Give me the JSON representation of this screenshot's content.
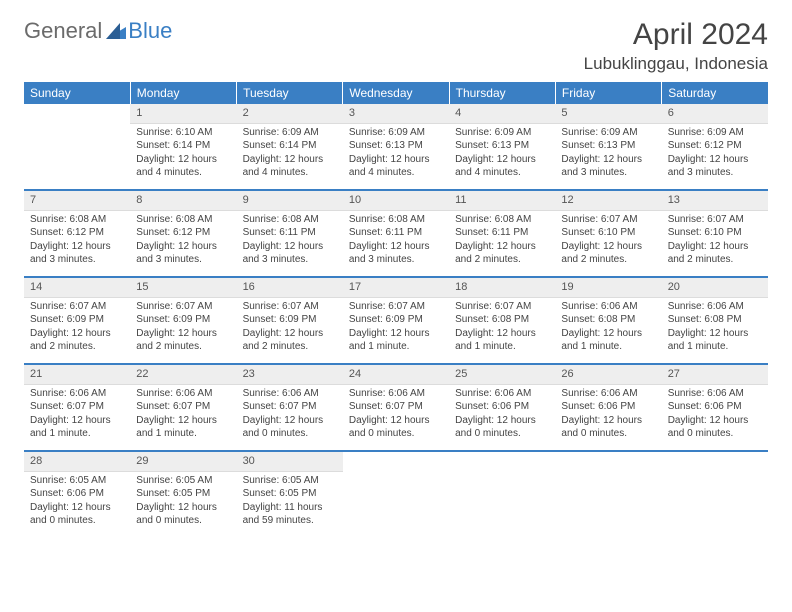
{
  "brand": {
    "part1": "General",
    "part2": "Blue"
  },
  "title": "April 2024",
  "location": "Lubuklinggau, Indonesia",
  "header_bg": "#3a7fc4",
  "weekdays": [
    "Sunday",
    "Monday",
    "Tuesday",
    "Wednesday",
    "Thursday",
    "Friday",
    "Saturday"
  ],
  "cell_bg_daynum": "#eeeeee",
  "text_color": "#444444",
  "days": [
    {
      "n": "",
      "sunrise": "",
      "sunset": "",
      "daylight": ""
    },
    {
      "n": "1",
      "sunrise": "Sunrise: 6:10 AM",
      "sunset": "Sunset: 6:14 PM",
      "daylight": "Daylight: 12 hours and 4 minutes."
    },
    {
      "n": "2",
      "sunrise": "Sunrise: 6:09 AM",
      "sunset": "Sunset: 6:14 PM",
      "daylight": "Daylight: 12 hours and 4 minutes."
    },
    {
      "n": "3",
      "sunrise": "Sunrise: 6:09 AM",
      "sunset": "Sunset: 6:13 PM",
      "daylight": "Daylight: 12 hours and 4 minutes."
    },
    {
      "n": "4",
      "sunrise": "Sunrise: 6:09 AM",
      "sunset": "Sunset: 6:13 PM",
      "daylight": "Daylight: 12 hours and 4 minutes."
    },
    {
      "n": "5",
      "sunrise": "Sunrise: 6:09 AM",
      "sunset": "Sunset: 6:13 PM",
      "daylight": "Daylight: 12 hours and 3 minutes."
    },
    {
      "n": "6",
      "sunrise": "Sunrise: 6:09 AM",
      "sunset": "Sunset: 6:12 PM",
      "daylight": "Daylight: 12 hours and 3 minutes."
    },
    {
      "n": "7",
      "sunrise": "Sunrise: 6:08 AM",
      "sunset": "Sunset: 6:12 PM",
      "daylight": "Daylight: 12 hours and 3 minutes."
    },
    {
      "n": "8",
      "sunrise": "Sunrise: 6:08 AM",
      "sunset": "Sunset: 6:12 PM",
      "daylight": "Daylight: 12 hours and 3 minutes."
    },
    {
      "n": "9",
      "sunrise": "Sunrise: 6:08 AM",
      "sunset": "Sunset: 6:11 PM",
      "daylight": "Daylight: 12 hours and 3 minutes."
    },
    {
      "n": "10",
      "sunrise": "Sunrise: 6:08 AM",
      "sunset": "Sunset: 6:11 PM",
      "daylight": "Daylight: 12 hours and 3 minutes."
    },
    {
      "n": "11",
      "sunrise": "Sunrise: 6:08 AM",
      "sunset": "Sunset: 6:11 PM",
      "daylight": "Daylight: 12 hours and 2 minutes."
    },
    {
      "n": "12",
      "sunrise": "Sunrise: 6:07 AM",
      "sunset": "Sunset: 6:10 PM",
      "daylight": "Daylight: 12 hours and 2 minutes."
    },
    {
      "n": "13",
      "sunrise": "Sunrise: 6:07 AM",
      "sunset": "Sunset: 6:10 PM",
      "daylight": "Daylight: 12 hours and 2 minutes."
    },
    {
      "n": "14",
      "sunrise": "Sunrise: 6:07 AM",
      "sunset": "Sunset: 6:09 PM",
      "daylight": "Daylight: 12 hours and 2 minutes."
    },
    {
      "n": "15",
      "sunrise": "Sunrise: 6:07 AM",
      "sunset": "Sunset: 6:09 PM",
      "daylight": "Daylight: 12 hours and 2 minutes."
    },
    {
      "n": "16",
      "sunrise": "Sunrise: 6:07 AM",
      "sunset": "Sunset: 6:09 PM",
      "daylight": "Daylight: 12 hours and 2 minutes."
    },
    {
      "n": "17",
      "sunrise": "Sunrise: 6:07 AM",
      "sunset": "Sunset: 6:09 PM",
      "daylight": "Daylight: 12 hours and 1 minute."
    },
    {
      "n": "18",
      "sunrise": "Sunrise: 6:07 AM",
      "sunset": "Sunset: 6:08 PM",
      "daylight": "Daylight: 12 hours and 1 minute."
    },
    {
      "n": "19",
      "sunrise": "Sunrise: 6:06 AM",
      "sunset": "Sunset: 6:08 PM",
      "daylight": "Daylight: 12 hours and 1 minute."
    },
    {
      "n": "20",
      "sunrise": "Sunrise: 6:06 AM",
      "sunset": "Sunset: 6:08 PM",
      "daylight": "Daylight: 12 hours and 1 minute."
    },
    {
      "n": "21",
      "sunrise": "Sunrise: 6:06 AM",
      "sunset": "Sunset: 6:07 PM",
      "daylight": "Daylight: 12 hours and 1 minute."
    },
    {
      "n": "22",
      "sunrise": "Sunrise: 6:06 AM",
      "sunset": "Sunset: 6:07 PM",
      "daylight": "Daylight: 12 hours and 1 minute."
    },
    {
      "n": "23",
      "sunrise": "Sunrise: 6:06 AM",
      "sunset": "Sunset: 6:07 PM",
      "daylight": "Daylight: 12 hours and 0 minutes."
    },
    {
      "n": "24",
      "sunrise": "Sunrise: 6:06 AM",
      "sunset": "Sunset: 6:07 PM",
      "daylight": "Daylight: 12 hours and 0 minutes."
    },
    {
      "n": "25",
      "sunrise": "Sunrise: 6:06 AM",
      "sunset": "Sunset: 6:06 PM",
      "daylight": "Daylight: 12 hours and 0 minutes."
    },
    {
      "n": "26",
      "sunrise": "Sunrise: 6:06 AM",
      "sunset": "Sunset: 6:06 PM",
      "daylight": "Daylight: 12 hours and 0 minutes."
    },
    {
      "n": "27",
      "sunrise": "Sunrise: 6:06 AM",
      "sunset": "Sunset: 6:06 PM",
      "daylight": "Daylight: 12 hours and 0 minutes."
    },
    {
      "n": "28",
      "sunrise": "Sunrise: 6:05 AM",
      "sunset": "Sunset: 6:06 PM",
      "daylight": "Daylight: 12 hours and 0 minutes."
    },
    {
      "n": "29",
      "sunrise": "Sunrise: 6:05 AM",
      "sunset": "Sunset: 6:05 PM",
      "daylight": "Daylight: 12 hours and 0 minutes."
    },
    {
      "n": "30",
      "sunrise": "Sunrise: 6:05 AM",
      "sunset": "Sunset: 6:05 PM",
      "daylight": "Daylight: 11 hours and 59 minutes."
    },
    {
      "n": "",
      "sunrise": "",
      "sunset": "",
      "daylight": ""
    },
    {
      "n": "",
      "sunrise": "",
      "sunset": "",
      "daylight": ""
    },
    {
      "n": "",
      "sunrise": "",
      "sunset": "",
      "daylight": ""
    },
    {
      "n": "",
      "sunrise": "",
      "sunset": "",
      "daylight": ""
    }
  ]
}
